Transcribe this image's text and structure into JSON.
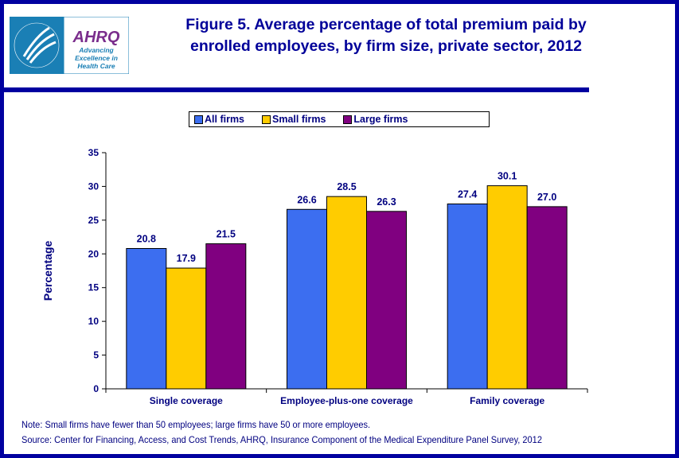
{
  "logo": {
    "text": "AHRQ",
    "tagline": "Advancing Excellence in Health Care",
    "seal": "Department of Health & Human Services USA"
  },
  "colors": {
    "frame": "#0000a0",
    "text": "#000080",
    "all": "#3c6ef0",
    "small": "#ffcc00",
    "large": "#800080"
  },
  "chart_data": {
    "type": "bar",
    "title": "Figure 5. Average percentage of total premium paid by enrolled employees, by firm size, private sector, 2012",
    "ylabel": "Percentage",
    "xlabel": "",
    "ylim": [
      0,
      35
    ],
    "yticks": [
      0,
      5,
      10,
      15,
      20,
      25,
      30,
      35
    ],
    "categories": [
      "Single coverage",
      "Employee-plus-one coverage",
      "Family coverage"
    ],
    "series": [
      {
        "name": "All firms",
        "color": "#3c6ef0",
        "values": [
          20.8,
          26.6,
          27.4
        ],
        "labels": [
          "20.8",
          "26.6",
          "27.4"
        ]
      },
      {
        "name": "Small firms",
        "color": "#ffcc00",
        "values": [
          17.9,
          28.5,
          30.1
        ],
        "labels": [
          "17.9",
          "28.5",
          "30.1"
        ]
      },
      {
        "name": "Large firms",
        "color": "#800080",
        "values": [
          21.5,
          26.3,
          27.0
        ],
        "labels": [
          "21.5",
          "26.3",
          "27.0"
        ]
      }
    ],
    "legend": "top",
    "grid": false
  },
  "note": "Note: Small firms have fewer than 50 employees; large firms have 50 or more employees.",
  "source": "Source: Center for Financing, Access, and Cost Trends, AHRQ, Insurance Component of the Medical Expenditure Panel Survey, 2012"
}
